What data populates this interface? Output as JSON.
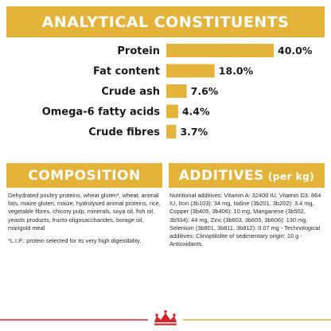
{
  "analytical": {
    "title": "ANALYTICAL CONSTITUENTS"
  },
  "chart_data": {
    "type": "bar",
    "orientation": "horizontal",
    "title": "ANALYTICAL CONSTITUENTS",
    "categories": [
      "Protein",
      "Fat content",
      "Crude ash",
      "Omega-6 fatty acids",
      "Crude fibres"
    ],
    "values": [
      40.0,
      18.0,
      7.6,
      4.4,
      3.7
    ],
    "value_labels": [
      "40.0%",
      "18.0%",
      "7.6%",
      "4.4%",
      "3.7%"
    ],
    "xlim": [
      0,
      40
    ],
    "grid": false,
    "legend": "none",
    "bar_color": "#e4b43a"
  },
  "composition": {
    "title": "COMPOSITION",
    "text": "Dehydrated poultry proteins, wheat gluten*, wheat, animal fats, maize gluten, maize, hydrolysed animal proteins, rice, vegetable fibres, chicory pulp, minerals, soya oil, fish oil, yeasts products, fructo-oligosaccharides, borage oil, marigold meal",
    "note": "*L.I.P.: protein selected for its very high digestibility."
  },
  "additives": {
    "title": "ADDITIVES",
    "title_suffix": "(per kg)",
    "text": "Nutritional additives: Vitamin A: 32400 IU, Vitamin D3: 864 IU, Iron (3b103): 34 mg, Iodine (3b201, 3b202): 3.4 mg, Copper (3b405, 3b406): 10 mg, Manganese (3b502, 3b504): 44 mg, Zinc (3b603, 3b605, 3b606): 130 mg, Selenium (3b801, 3b811, 3b812): 0.07 mg - Technological additives: Clinoptilolite of sedimentary origin: 10 g - Antioxidants."
  },
  "colors": {
    "accent": "#e4b43a",
    "brand_red": "#d8232a"
  },
  "icons": {
    "brand": "crown-logo-icon"
  }
}
